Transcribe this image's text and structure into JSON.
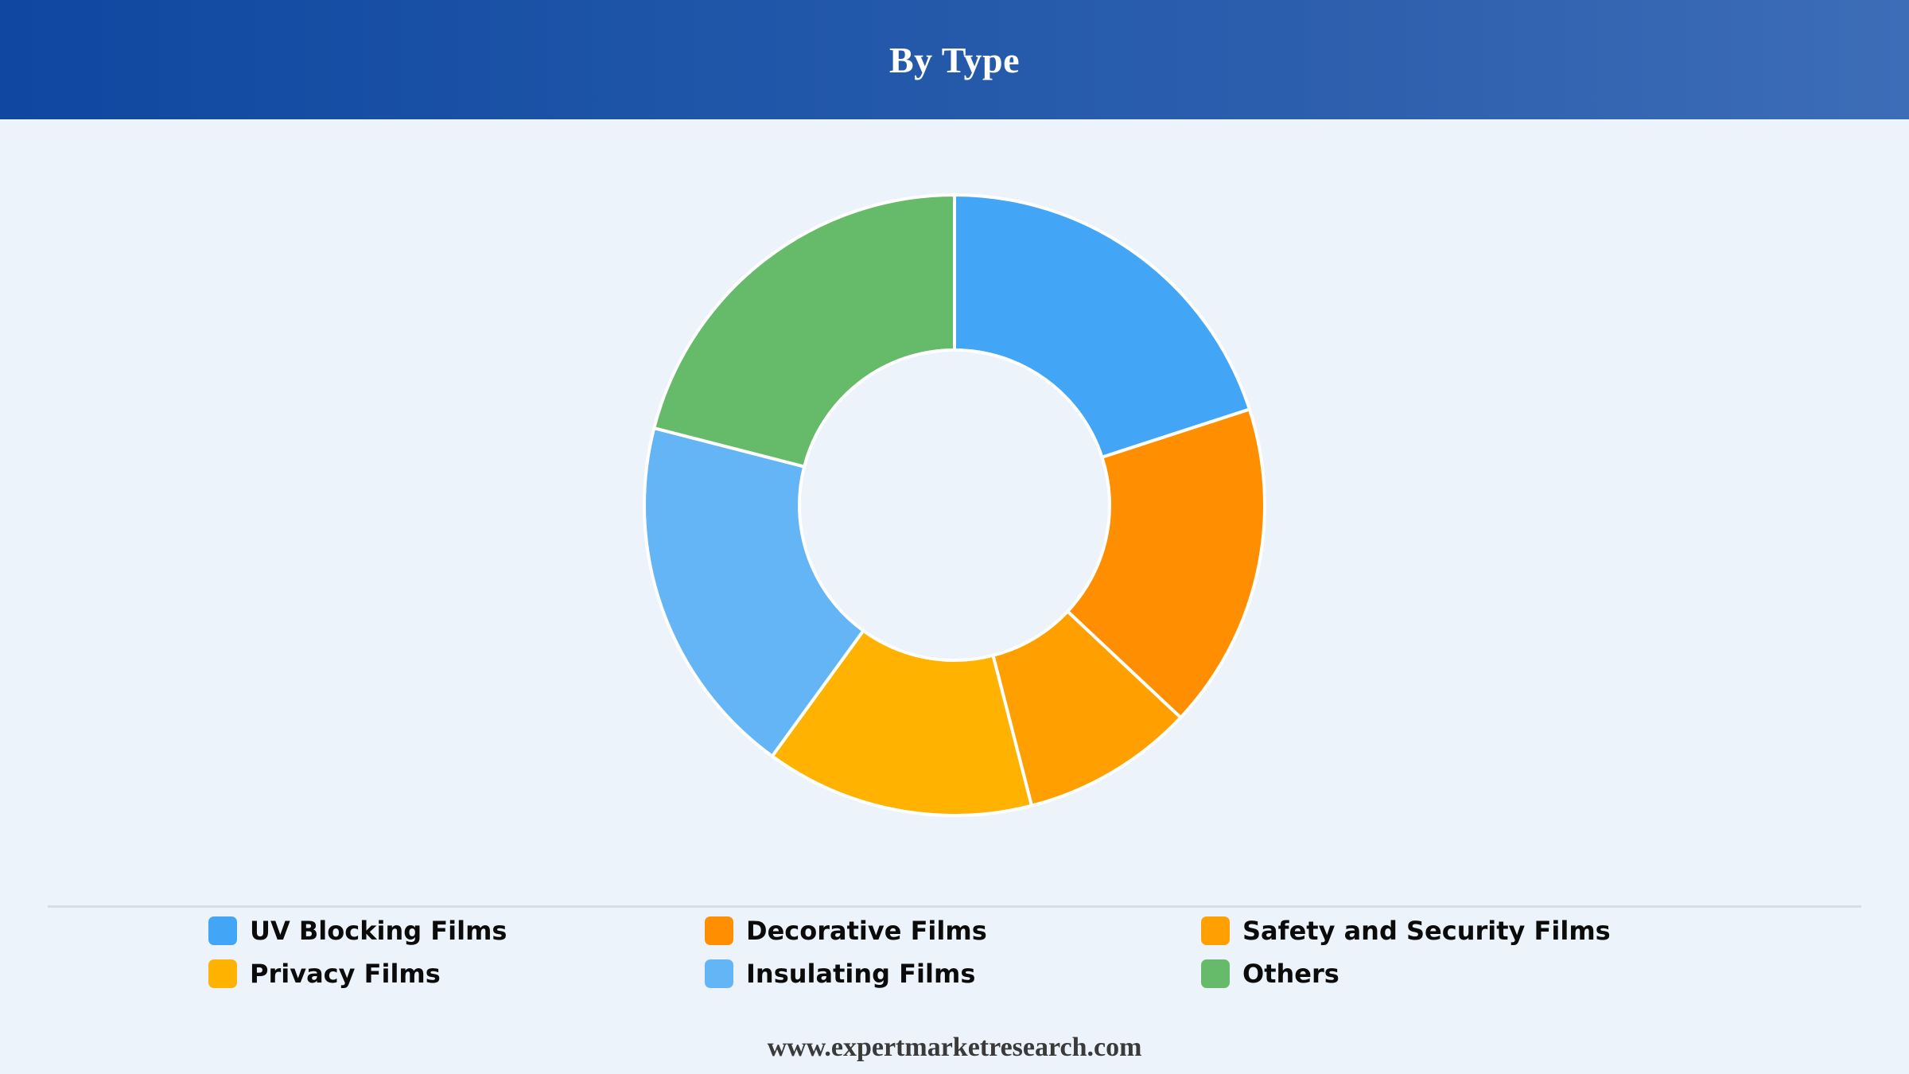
{
  "header": {
    "title": "By Type"
  },
  "chart_data": {
    "type": "pie",
    "donut": true,
    "title": "By Type",
    "series": [
      {
        "labels": [
          "UV Blocking Films",
          "Decorative Films",
          "Safety and Security Films",
          "Privacy Films",
          "Insulating Films",
          "Others"
        ],
        "values": [
          20,
          17,
          9,
          14,
          19,
          21
        ],
        "colors": [
          "#42a5f5",
          "#ff8f00",
          "#ffa000",
          "#ffb300",
          "#64b5f6",
          "#66bb6a"
        ]
      }
    ],
    "legend_position": "bottom"
  },
  "legend": {
    "items": [
      {
        "label": "UV Blocking Films",
        "color": "#42a5f5"
      },
      {
        "label": "Decorative Films",
        "color": "#ff8f00"
      },
      {
        "label": "Safety and Security Films",
        "color": "#ffa000"
      },
      {
        "label": "Privacy Films",
        "color": "#ffb300"
      },
      {
        "label": "Insulating Films",
        "color": "#64b5f6"
      },
      {
        "label": "Others",
        "color": "#66bb6a"
      }
    ]
  },
  "footer": {
    "text": "www.expertmarketresearch.com"
  }
}
